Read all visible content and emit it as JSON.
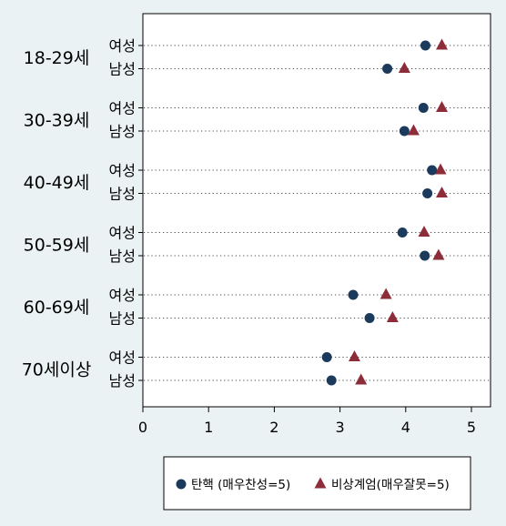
{
  "chart_data": {
    "type": "dot",
    "xlim": [
      0,
      5.3
    ],
    "xticks": [
      0,
      1,
      2,
      3,
      4,
      5
    ],
    "groups": [
      {
        "label": "18-29세",
        "rows": [
          {
            "label": "여성",
            "impeachment": 4.3,
            "martial_law": 4.55
          },
          {
            "label": "남성",
            "impeachment": 3.72,
            "martial_law": 3.98
          }
        ]
      },
      {
        "label": "30-39세",
        "rows": [
          {
            "label": "여성",
            "impeachment": 4.27,
            "martial_law": 4.55
          },
          {
            "label": "남성",
            "impeachment": 3.98,
            "martial_law": 4.12
          }
        ]
      },
      {
        "label": "40-49세",
        "rows": [
          {
            "label": "여성",
            "impeachment": 4.4,
            "martial_law": 4.53
          },
          {
            "label": "남성",
            "impeachment": 4.33,
            "martial_law": 4.55
          }
        ]
      },
      {
        "label": "50-59세",
        "rows": [
          {
            "label": "여성",
            "impeachment": 3.95,
            "martial_law": 4.28
          },
          {
            "label": "남성",
            "impeachment": 4.29,
            "martial_law": 4.5
          }
        ]
      },
      {
        "label": "60-69세",
        "rows": [
          {
            "label": "여성",
            "impeachment": 3.2,
            "martial_law": 3.7
          },
          {
            "label": "남성",
            "impeachment": 3.45,
            "martial_law": 3.8
          }
        ]
      },
      {
        "label": "70세이상",
        "rows": [
          {
            "label": "여성",
            "impeachment": 2.8,
            "martial_law": 3.22
          },
          {
            "label": "남성",
            "impeachment": 2.87,
            "martial_law": 3.32
          }
        ]
      }
    ],
    "series": [
      {
        "key": "impeachment",
        "name": "탄핵 (매우찬성=5)",
        "marker": "circle",
        "color": "#1b3a5c"
      },
      {
        "key": "martial_law",
        "name": "비상계엄(매우잘못=5)",
        "marker": "triangle",
        "color": "#8e2d3a"
      }
    ],
    "legend_position": "bottom",
    "grid": "dotted-rows"
  }
}
